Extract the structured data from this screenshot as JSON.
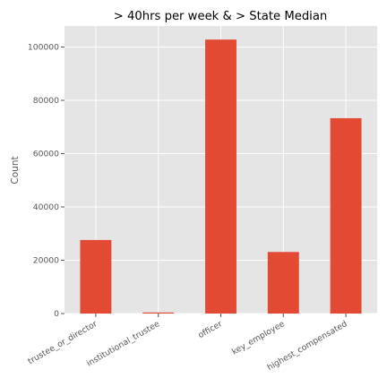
{
  "chart_data": {
    "type": "bar",
    "title": "> 40hrs per week & > State Median",
    "xlabel": "",
    "ylabel": "Count",
    "categories": [
      "trustee_or_director",
      "institutional_trustee",
      "officer",
      "key_employee",
      "highest_compensated"
    ],
    "values": [
      27600,
      400,
      102800,
      23100,
      73300
    ],
    "ylim": [
      0,
      107900
    ],
    "yticks": [
      0,
      20000,
      40000,
      60000,
      80000,
      100000
    ],
    "grid": true,
    "legend": "none",
    "colors": {
      "bar": "#E24A33",
      "background": "#E5E5E5",
      "grid": "#FFFFFF"
    }
  }
}
